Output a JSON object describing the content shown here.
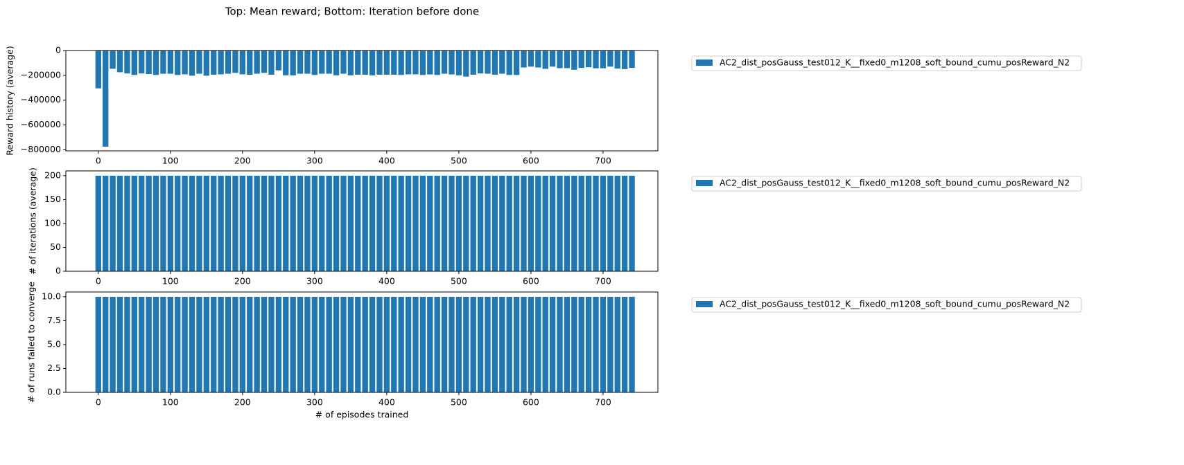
{
  "title": "Top: Mean reward; Bottom: Iteration before done",
  "chart_data": [
    {
      "type": "bar",
      "ylabel": "Reward history (average)",
      "x": [
        0,
        10,
        20,
        30,
        40,
        50,
        60,
        70,
        80,
        90,
        100,
        110,
        120,
        130,
        140,
        150,
        160,
        170,
        180,
        190,
        200,
        210,
        220,
        230,
        240,
        250,
        260,
        270,
        280,
        290,
        300,
        310,
        320,
        330,
        340,
        350,
        360,
        370,
        380,
        390,
        400,
        410,
        420,
        430,
        440,
        450,
        460,
        470,
        480,
        490,
        500,
        510,
        520,
        530,
        540,
        550,
        560,
        570,
        580,
        590,
        600,
        610,
        620,
        630,
        640,
        650,
        660,
        670,
        680,
        690,
        700,
        710,
        720,
        730,
        740
      ],
      "series": [
        {
          "name": "AC2_dist_posGauss_test012_K__fixed0_m1208_soft_bound_cumu_posReward_N2",
          "color": "#1f77b4",
          "values": [
            -305000,
            -775000,
            -147000,
            -175000,
            -185000,
            -197000,
            -185000,
            -190000,
            -197000,
            -187000,
            -187000,
            -197000,
            -192000,
            -203000,
            -187000,
            -203000,
            -195000,
            -192000,
            -187000,
            -180000,
            -192000,
            -195000,
            -187000,
            -180000,
            -195000,
            -160000,
            -200000,
            -200000,
            -187000,
            -187000,
            -197000,
            -187000,
            -187000,
            -200000,
            -187000,
            -200000,
            -195000,
            -195000,
            -200000,
            -195000,
            -195000,
            -195000,
            -197000,
            -192000,
            -192000,
            -197000,
            -193000,
            -197000,
            -187000,
            -193000,
            -200000,
            -210000,
            -195000,
            -185000,
            -187000,
            -195000,
            -187000,
            -197000,
            -197000,
            -137000,
            -130000,
            -137000,
            -148000,
            -130000,
            -142000,
            -142000,
            -155000,
            -140000,
            -135000,
            -143000,
            -143000,
            -130000,
            -145000,
            -150000,
            -140000
          ]
        }
      ],
      "xlim": [
        -45,
        776
      ],
      "xticks": [
        0,
        100,
        200,
        300,
        400,
        500,
        600,
        700
      ],
      "ylim": [
        -808500,
        0
      ],
      "yticks": [
        0,
        {
          "value": -200000,
          "label": "−200000"
        },
        {
          "value": -400000,
          "label": "−400000"
        },
        {
          "value": -600000,
          "label": "−600000"
        },
        {
          "value": -800000,
          "label": "−800000"
        }
      ],
      "legend": "outside-upper-right"
    },
    {
      "type": "bar",
      "ylabel": "# of iterations (average)",
      "x": [
        0,
        10,
        20,
        30,
        40,
        50,
        60,
        70,
        80,
        90,
        100,
        110,
        120,
        130,
        140,
        150,
        160,
        170,
        180,
        190,
        200,
        210,
        220,
        230,
        240,
        250,
        260,
        270,
        280,
        290,
        300,
        310,
        320,
        330,
        340,
        350,
        360,
        370,
        380,
        390,
        400,
        410,
        420,
        430,
        440,
        450,
        460,
        470,
        480,
        490,
        500,
        510,
        520,
        530,
        540,
        550,
        560,
        570,
        580,
        590,
        600,
        610,
        620,
        630,
        640,
        650,
        660,
        670,
        680,
        690,
        700,
        710,
        720,
        730,
        740
      ],
      "series": [
        {
          "name": "AC2_dist_posGauss_test012_K__fixed0_m1208_soft_bound_cumu_posReward_N2",
          "color": "#1f77b4",
          "values": [
            200,
            200,
            200,
            200,
            200,
            200,
            200,
            200,
            200,
            200,
            200,
            200,
            200,
            200,
            200,
            200,
            200,
            200,
            200,
            200,
            200,
            200,
            200,
            200,
            200,
            200,
            200,
            200,
            200,
            200,
            200,
            200,
            200,
            200,
            200,
            200,
            200,
            200,
            200,
            200,
            200,
            200,
            200,
            200,
            200,
            200,
            200,
            200,
            200,
            200,
            200,
            200,
            200,
            200,
            200,
            200,
            200,
            200,
            200,
            200,
            200,
            200,
            200,
            200,
            200,
            200,
            200,
            200,
            200,
            200,
            200,
            200,
            200,
            200,
            200
          ]
        }
      ],
      "xlim": [
        -45,
        776
      ],
      "xticks": [
        0,
        100,
        200,
        300,
        400,
        500,
        600,
        700
      ],
      "ylim": [
        0,
        210
      ],
      "yticks": [
        0,
        50,
        100,
        150,
        200
      ],
      "legend": "outside-upper-right"
    },
    {
      "type": "bar",
      "ylabel": "# of runs failed to converge",
      "xlabel": "# of episodes trained",
      "x": [
        0,
        10,
        20,
        30,
        40,
        50,
        60,
        70,
        80,
        90,
        100,
        110,
        120,
        130,
        140,
        150,
        160,
        170,
        180,
        190,
        200,
        210,
        220,
        230,
        240,
        250,
        260,
        270,
        280,
        290,
        300,
        310,
        320,
        330,
        340,
        350,
        360,
        370,
        380,
        390,
        400,
        410,
        420,
        430,
        440,
        450,
        460,
        470,
        480,
        490,
        500,
        510,
        520,
        530,
        540,
        550,
        560,
        570,
        580,
        590,
        600,
        610,
        620,
        630,
        640,
        650,
        660,
        670,
        680,
        690,
        700,
        710,
        720,
        730,
        740
      ],
      "series": [
        {
          "name": "AC2_dist_posGauss_test012_K__fixed0_m1208_soft_bound_cumu_posReward_N2",
          "color": "#1f77b4",
          "values": [
            10,
            10,
            10,
            10,
            10,
            10,
            10,
            10,
            10,
            10,
            10,
            10,
            10,
            10,
            10,
            10,
            10,
            10,
            10,
            10,
            10,
            10,
            10,
            10,
            10,
            10,
            10,
            10,
            10,
            10,
            10,
            10,
            10,
            10,
            10,
            10,
            10,
            10,
            10,
            10,
            10,
            10,
            10,
            10,
            10,
            10,
            10,
            10,
            10,
            10,
            10,
            10,
            10,
            10,
            10,
            10,
            10,
            10,
            10,
            10,
            10,
            10,
            10,
            10,
            10,
            10,
            10,
            10,
            10,
            10,
            10,
            10,
            10,
            10,
            10
          ]
        }
      ],
      "xlim": [
        -45,
        776
      ],
      "xticks": [
        0,
        100,
        200,
        300,
        400,
        500,
        600,
        700
      ],
      "ylim": [
        0,
        10.5
      ],
      "yticks": [
        {
          "value": 0,
          "label": "0.0"
        },
        2.5,
        {
          "value": 5,
          "label": "5.0"
        },
        7.5,
        {
          "value": 10,
          "label": "10.0"
        }
      ],
      "legend": "outside-upper-right"
    }
  ]
}
